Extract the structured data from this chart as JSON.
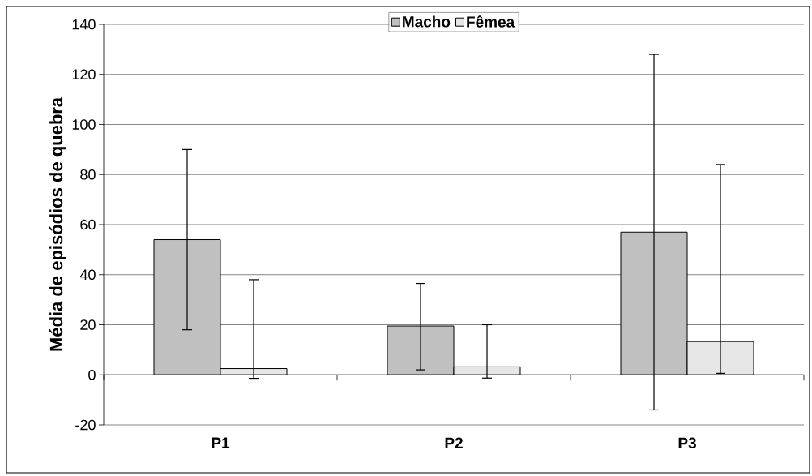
{
  "chart_data": {
    "type": "bar",
    "ylabel": "Média de episódios de quebra",
    "categories": [
      "P1",
      "P2",
      "P3"
    ],
    "series": [
      {
        "name": "Macho",
        "color": "#c0c0c0",
        "values": [
          54,
          19.5,
          57
        ],
        "errors": [
          [
            18,
            90
          ],
          [
            2,
            36.5
          ],
          [
            -14,
            128
          ]
        ]
      },
      {
        "name": "Fêmea",
        "color": "#e6e6e6",
        "values": [
          2.5,
          3.2,
          13.3
        ],
        "errors": [
          [
            -1.4,
            38
          ],
          [
            -1.3,
            20
          ],
          [
            0.6,
            84
          ]
        ]
      }
    ],
    "ylim": [
      -20,
      140
    ],
    "yticks": [
      -20,
      0,
      20,
      40,
      60,
      80,
      100,
      120,
      140
    ],
    "grid": "y",
    "legend": "top"
  }
}
